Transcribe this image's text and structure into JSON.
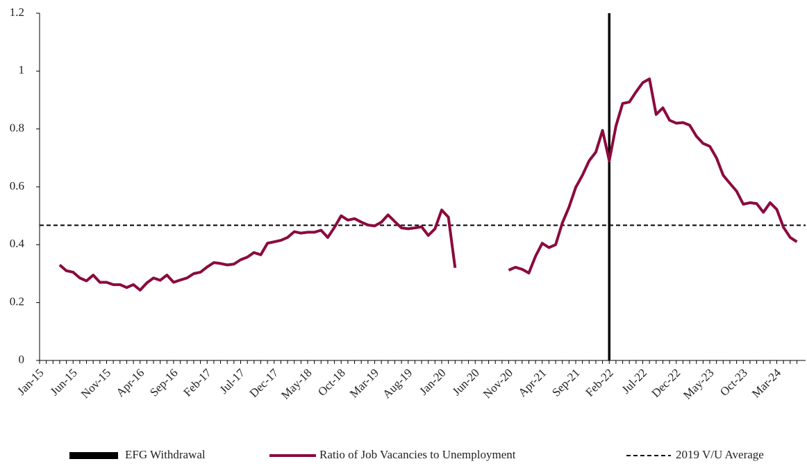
{
  "chart_data": {
    "type": "line",
    "categories": [
      "Jan-15",
      null,
      null,
      null,
      null,
      "Jun-15",
      null,
      null,
      null,
      null,
      "Nov-15",
      null,
      null,
      null,
      null,
      "Apr-16",
      null,
      null,
      null,
      null,
      "Sep-16",
      null,
      null,
      null,
      null,
      "Feb-17",
      null,
      null,
      null,
      null,
      "Jul-17",
      null,
      null,
      null,
      null,
      "Dec-17",
      null,
      null,
      null,
      null,
      "May-18",
      null,
      null,
      null,
      null,
      "Oct-18",
      null,
      null,
      null,
      null,
      "Mar-19",
      null,
      null,
      null,
      null,
      "Aug-19",
      null,
      null,
      null,
      null,
      "Jan-20",
      null,
      null,
      null,
      null,
      "Jun-20",
      null,
      null,
      null,
      null,
      "Nov-20",
      null,
      null,
      null,
      null,
      "Apr-21",
      null,
      null,
      null,
      null,
      "Sep-21",
      null,
      null,
      null,
      null,
      "Feb-22",
      null,
      null,
      null,
      null,
      "Jul-22",
      null,
      null,
      null,
      null,
      "Dec-22",
      null,
      null,
      null,
      null,
      "May-23",
      null,
      null,
      null,
      null,
      "Oct-23",
      null,
      null,
      null,
      null,
      "Mar-24",
      null,
      null,
      null
    ],
    "series": [
      {
        "name": "Ratio of Job Vacancies to Unemployment",
        "color": "#8b0a3e",
        "values": [
          null,
          null,
          null,
          0.33,
          0.31,
          0.305,
          0.285,
          0.275,
          0.295,
          0.27,
          0.27,
          0.262,
          0.262,
          0.252,
          0.262,
          0.243,
          0.268,
          0.285,
          0.277,
          0.295,
          0.27,
          0.278,
          0.285,
          0.3,
          0.305,
          0.323,
          0.338,
          0.335,
          0.33,
          0.333,
          0.348,
          0.357,
          0.373,
          0.365,
          0.405,
          0.41,
          0.415,
          0.425,
          0.445,
          0.44,
          0.443,
          0.443,
          0.45,
          0.425,
          0.46,
          0.5,
          0.485,
          0.49,
          0.478,
          0.468,
          0.465,
          0.478,
          0.503,
          0.48,
          0.458,
          0.455,
          0.458,
          0.462,
          0.432,
          0.455,
          0.52,
          0.495,
          0.32,
          null,
          null,
          null,
          null,
          null,
          null,
          null,
          0.312,
          0.322,
          0.315,
          0.302,
          0.36,
          0.405,
          0.39,
          0.4,
          0.475,
          0.53,
          0.598,
          0.64,
          0.69,
          0.72,
          0.795,
          0.69,
          0.81,
          0.888,
          0.893,
          0.928,
          0.96,
          0.973,
          0.85,
          0.873,
          0.83,
          0.82,
          0.822,
          0.813,
          0.775,
          0.75,
          0.74,
          0.7,
          0.64,
          0.612,
          0.585,
          0.54,
          0.545,
          0.542,
          0.512,
          0.545,
          0.522,
          0.46,
          0.425,
          0.41
        ]
      }
    ],
    "vline": {
      "name": "EFG Withdrawal",
      "x": "Feb-22",
      "color": "#000000"
    },
    "hline": {
      "name": "2019 V/U Average",
      "value": 0.467,
      "color": "#000000"
    },
    "ylim": [
      0,
      1.2
    ],
    "yticks": [
      0,
      0.2,
      0.4,
      0.6,
      0.8,
      1,
      1.2
    ]
  }
}
